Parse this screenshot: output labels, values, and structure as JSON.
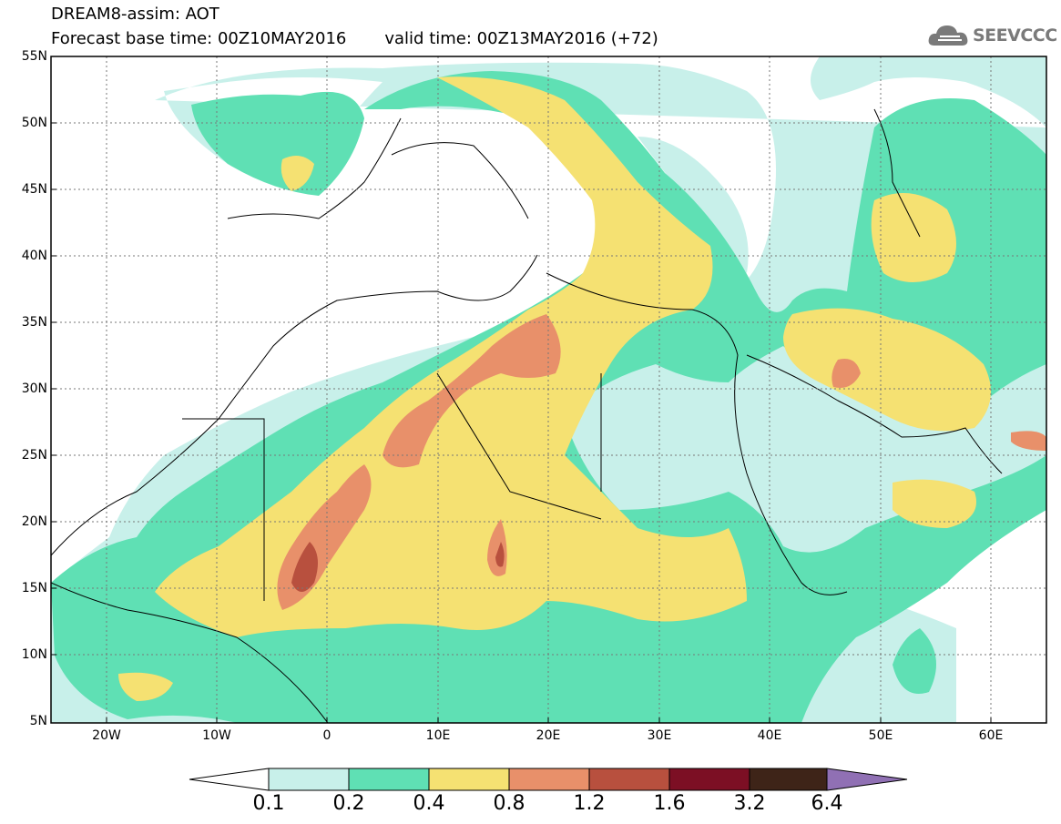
{
  "title": {
    "line1": "DREAM8-assim: AOT",
    "base_time": "Forecast base time: 00Z10MAY2016",
    "valid_time": "valid time: 00Z13MAY2016 (+72)"
  },
  "logo": {
    "text": "SEEVCCC",
    "icon": "cloud-icon"
  },
  "map": {
    "lon_range": [
      -25,
      65
    ],
    "lat_range": [
      5,
      55
    ],
    "lat_labels": [
      "55N",
      "50N",
      "45N",
      "40N",
      "35N",
      "30N",
      "25N",
      "20N",
      "15N",
      "10N",
      "5N"
    ],
    "lon_labels": [
      "20W",
      "10W",
      "0",
      "10E",
      "20E",
      "30E",
      "40E",
      "50E",
      "60E"
    ],
    "grid": "dotted"
  },
  "colorbar": {
    "levels": [
      "0.1",
      "0.2",
      "0.4",
      "0.8",
      "1.2",
      "1.6",
      "3.2",
      "6.4"
    ],
    "colors": [
      "#c8f0ea",
      "#5fe0b4",
      "#f5e172",
      "#e8906a",
      "#b8503e",
      "#7c0f24",
      "#3e2418",
      "#9070b4"
    ],
    "under_color": "#ffffff"
  }
}
